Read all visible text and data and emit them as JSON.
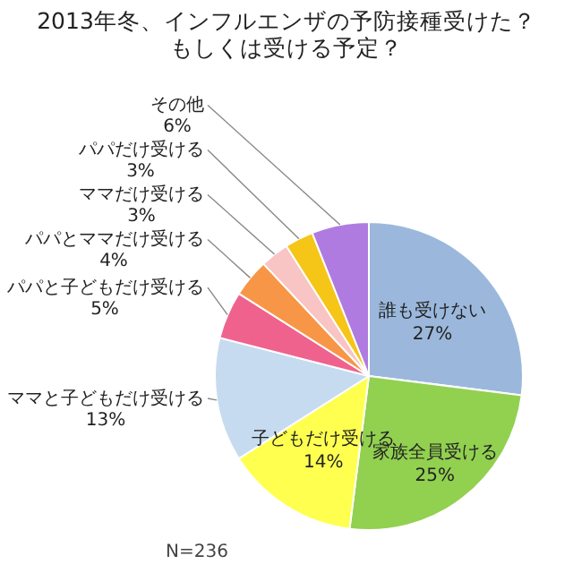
{
  "chart_data": {
    "type": "pie",
    "title": "2013年冬、インフルエンザの予防接種受けた？",
    "subtitle": "もしくは受ける予定？",
    "categories": [
      "誰も受けない",
      "家族全員受ける",
      "子どもだけ受ける",
      "ママと子どもだけ受ける",
      "パパと子どもだけ受ける",
      "パパとママだけ受ける",
      "ママだけ受ける",
      "パパだけ受ける",
      "その他"
    ],
    "values": [
      27,
      25,
      14,
      13,
      5,
      4,
      3,
      3,
      6
    ],
    "value_labels": [
      "27%",
      "25%",
      "14%",
      "13%",
      "5%",
      "4%",
      "3%",
      "3%",
      "6%"
    ],
    "colors": [
      "#9bb8dc",
      "#92d050",
      "#ffff50",
      "#c6dbef",
      "#f0628e",
      "#f79646",
      "#f9c4c4",
      "#f5c518",
      "#b07be0"
    ],
    "annotations": [
      "N=236"
    ]
  }
}
